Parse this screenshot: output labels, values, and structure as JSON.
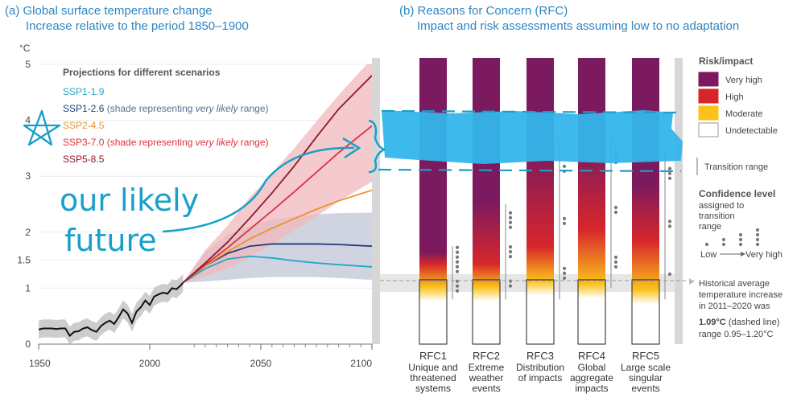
{
  "panel_a": {
    "title": "(a) Global surface temperature change",
    "subtitle": "Increase relative to the period 1850–1900",
    "unit": "°C",
    "legend_title": "Projections for different scenarios",
    "legend": [
      {
        "name": "SSP1-1.9",
        "note": "",
        "note_italic": "",
        "note_end": "",
        "color": "#23a8c8"
      },
      {
        "name": "SSP1-2.6",
        "note": " (shade representing ",
        "note_italic": "very likely",
        "note_end": " range)",
        "color": "#1f3e78",
        "note_color": "#5a6e8f"
      },
      {
        "name": "SSP2-4.5",
        "note": "",
        "note_italic": "",
        "note_end": "",
        "color": "#e8942c"
      },
      {
        "name": "SSP3-7.0",
        "note": " (shade representing ",
        "note_italic": "very likely",
        "note_end": " range)",
        "color": "#d9333f",
        "note_color": "#d9333f"
      },
      {
        "name": "SSP5-8.5",
        "note": "",
        "note_italic": "",
        "note_end": "",
        "color": "#8c1a2a"
      }
    ]
  },
  "panel_b": {
    "title": "(b) Reasons for Concern (RFC)",
    "subtitle": "Impact and risk assessments assuming low to no adaptation",
    "rfcs": [
      {
        "code": "RFC1",
        "desc": [
          "Unique and",
          "threatened",
          "systems"
        ]
      },
      {
        "code": "RFC2",
        "desc": [
          "Extreme",
          "weather",
          "events"
        ]
      },
      {
        "code": "RFC3",
        "desc": [
          "Distribution",
          "of impacts"
        ]
      },
      {
        "code": "RFC4",
        "desc": [
          "Global",
          "aggregate",
          "impacts"
        ]
      },
      {
        "code": "RFC5",
        "desc": [
          "Large scale",
          "singular",
          "events"
        ]
      }
    ],
    "key": {
      "risk_title": "Risk/impact",
      "levels": [
        {
          "label": "Very high",
          "color": "#7b1a5e"
        },
        {
          "label": "High",
          "color": "#d7262b"
        },
        {
          "label": "Moderate",
          "color": "#fbc21a"
        },
        {
          "label": "Undetectable",
          "color": "#ffffff"
        }
      ],
      "transition": "Transition range",
      "confidence_title": "Confidence level",
      "confidence_sub": [
        "assigned to",
        "transition",
        "range"
      ],
      "conf_low": "Low",
      "conf_high": "Very high",
      "hist_note": [
        "Historical average",
        "temperature increase",
        "in 2011–2020 was"
      ],
      "hist_value": "1.09°C",
      "hist_value_rest": " (dashed line)",
      "hist_range": "range 0.95–1.20°C"
    }
  },
  "annotations": {
    "line1": "our likely",
    "line2": "future"
  },
  "chart_data": [
    {
      "type": "line",
      "title": "(a) Global surface temperature change",
      "ylabel": "°C",
      "xlim": [
        1950,
        2100
      ],
      "ylim": [
        0,
        5
      ],
      "x_ticks": [
        1950,
        2000,
        2050,
        2100
      ],
      "y_ticks": [
        0,
        1,
        1.5,
        2,
        3,
        4,
        5
      ],
      "historical": {
        "x": [
          1950,
          1952,
          1954,
          1956,
          1958,
          1960,
          1962,
          1964,
          1966,
          1968,
          1970,
          1972,
          1974,
          1976,
          1978,
          1980,
          1982,
          1984,
          1986,
          1988,
          1990,
          1992,
          1994,
          1996,
          1998,
          2000,
          2002,
          2004,
          2006,
          2008,
          2010,
          2012,
          2014,
          2015
        ],
        "y": [
          0.26,
          0.28,
          0.28,
          0.28,
          0.27,
          0.28,
          0.28,
          0.15,
          0.22,
          0.23,
          0.28,
          0.3,
          0.25,
          0.22,
          0.32,
          0.38,
          0.42,
          0.36,
          0.48,
          0.62,
          0.55,
          0.38,
          0.58,
          0.66,
          0.78,
          0.7,
          0.85,
          0.89,
          0.92,
          0.9,
          1.0,
          0.98,
          1.05,
          1.1
        ],
        "band_low": [
          0.1,
          0.12,
          0.12,
          0.12,
          0.11,
          0.12,
          0.12,
          0.0,
          0.06,
          0.07,
          0.12,
          0.14,
          0.09,
          0.06,
          0.16,
          0.22,
          0.26,
          0.2,
          0.32,
          0.46,
          0.39,
          0.22,
          0.42,
          0.5,
          0.62,
          0.54,
          0.69,
          0.73,
          0.76,
          0.74,
          0.84,
          0.82,
          0.89,
          0.95
        ],
        "band_high": [
          0.42,
          0.44,
          0.44,
          0.44,
          0.43,
          0.44,
          0.44,
          0.31,
          0.38,
          0.39,
          0.44,
          0.46,
          0.41,
          0.38,
          0.48,
          0.54,
          0.58,
          0.52,
          0.64,
          0.78,
          0.71,
          0.54,
          0.74,
          0.82,
          0.94,
          0.86,
          1.01,
          1.05,
          1.08,
          1.06,
          1.16,
          1.14,
          1.21,
          1.25
        ]
      },
      "series": [
        {
          "name": "SSP1-1.9",
          "x": [
            2015,
            2025,
            2035,
            2045,
            2055,
            2065,
            2075,
            2085,
            2100
          ],
          "y": [
            1.1,
            1.35,
            1.52,
            1.57,
            1.54,
            1.49,
            1.45,
            1.42,
            1.38
          ]
        },
        {
          "name": "SSP1-2.6",
          "x": [
            2015,
            2025,
            2035,
            2045,
            2055,
            2065,
            2075,
            2085,
            2100
          ],
          "y": [
            1.1,
            1.4,
            1.62,
            1.75,
            1.79,
            1.79,
            1.79,
            1.78,
            1.75
          ],
          "band_low": [
            1.1,
            1.12,
            1.15,
            1.18,
            1.2,
            1.2,
            1.2,
            1.18,
            1.15
          ],
          "band_high": [
            1.1,
            1.65,
            1.95,
            2.12,
            2.22,
            2.28,
            2.32,
            2.34,
            2.35
          ]
        },
        {
          "name": "SSP2-4.5",
          "x": [
            2015,
            2025,
            2035,
            2045,
            2055,
            2065,
            2075,
            2085,
            2100
          ],
          "y": [
            1.1,
            1.4,
            1.65,
            1.88,
            2.07,
            2.24,
            2.41,
            2.56,
            2.75
          ]
        },
        {
          "name": "SSP3-7.0",
          "x": [
            2015,
            2025,
            2035,
            2045,
            2055,
            2065,
            2075,
            2085,
            2100
          ],
          "y": [
            1.1,
            1.42,
            1.72,
            2.05,
            2.38,
            2.72,
            3.07,
            3.42,
            3.9
          ],
          "band_low": [
            1.1,
            1.2,
            1.35,
            1.55,
            1.78,
            2.03,
            2.28,
            2.55,
            2.9
          ],
          "band_high": [
            1.1,
            1.68,
            2.12,
            2.62,
            3.05,
            3.5,
            3.98,
            4.45,
            5.1
          ]
        },
        {
          "name": "SSP5-8.5",
          "x": [
            2015,
            2025,
            2035,
            2045,
            2055,
            2065,
            2075,
            2085,
            2100
          ],
          "y": [
            1.1,
            1.45,
            1.82,
            2.25,
            2.7,
            3.18,
            3.7,
            4.2,
            4.8
          ]
        }
      ]
    },
    {
      "type": "heatmap",
      "title": "(b) Reasons for Concern (RFC)",
      "ylabel": "°C",
      "ylim": [
        0,
        5
      ],
      "categories": [
        "RFC1",
        "RFC2",
        "RFC3",
        "RFC4",
        "RFC5"
      ],
      "risk_stops": [
        {
          "rfc": "RFC1",
          "moderate": 1.0,
          "high": 1.4,
          "very_high": 1.6
        },
        {
          "rfc": "RFC2",
          "moderate": 1.0,
          "high": 1.4,
          "very_high": 2.5
        },
        {
          "rfc": "RFC3",
          "moderate": 1.1,
          "high": 1.7,
          "very_high": 3.4
        },
        {
          "rfc": "RFC4",
          "moderate": 1.05,
          "high": 2.0,
          "very_high": 3.5
        },
        {
          "rfc": "RFC5",
          "moderate": 0.95,
          "high": 1.8,
          "very_high": 2.8
        }
      ],
      "transition_ranges": [
        {
          "rfc": "RFC1",
          "from": 0.8,
          "to": 1.75,
          "confidence_dots": [
            6,
            3
          ]
        },
        {
          "rfc": "RFC2",
          "from": 0.8,
          "to": 2.5,
          "confidence_dots": [
            4,
            3,
            2
          ]
        },
        {
          "rfc": "RFC3",
          "from": 0.8,
          "to": 3.6,
          "confidence_dots": [
            2,
            2,
            3
          ]
        },
        {
          "rfc": "RFC4",
          "from": 1.0,
          "to": 3.8,
          "confidence_dots": [
            3,
            2,
            3
          ]
        },
        {
          "rfc": "RFC5",
          "from": 0.8,
          "to": 3.5,
          "confidence_dots": [
            3,
            2,
            1
          ]
        }
      ],
      "historical_2011_2020": 1.09,
      "historical_range": [
        0.95,
        1.2
      ]
    }
  ]
}
